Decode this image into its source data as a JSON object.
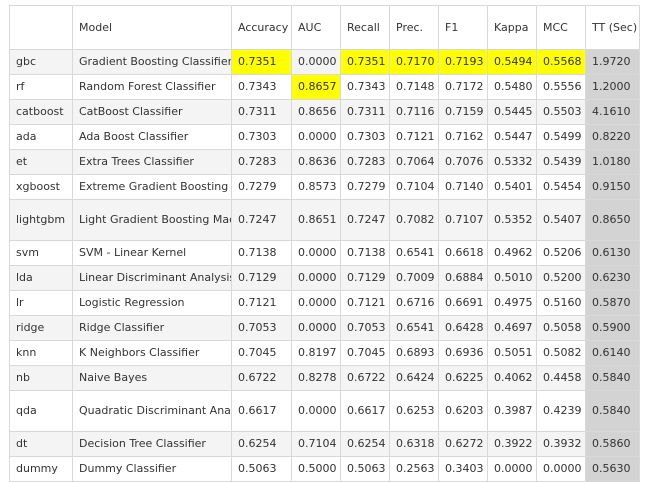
{
  "columns": [
    "",
    "Model",
    "Accuracy",
    "AUC",
    "Recall",
    "Prec.",
    "F1",
    "Kappa",
    "MCC",
    "TT (Sec)"
  ],
  "highlight_color": "#ffff00",
  "tt_column_color": "#d3d3d3",
  "rows": [
    {
      "id": "gbc",
      "model": "Gradient Boosting Classifier",
      "accuracy": "0.7351",
      "auc": "0.0000",
      "recall": "0.7351",
      "prec": "0.7170",
      "f1": "0.7193",
      "kappa": "0.5494",
      "mcc": "0.5568",
      "tt": "1.9720",
      "highlight": [
        "accuracy",
        "recall",
        "prec",
        "f1",
        "kappa",
        "mcc"
      ]
    },
    {
      "id": "rf",
      "model": "Random Forest Classifier",
      "accuracy": "0.7343",
      "auc": "0.8657",
      "recall": "0.7343",
      "prec": "0.7148",
      "f1": "0.7172",
      "kappa": "0.5480",
      "mcc": "0.5556",
      "tt": "1.2000",
      "highlight": [
        "auc"
      ]
    },
    {
      "id": "catboost",
      "model": "CatBoost Classifier",
      "accuracy": "0.7311",
      "auc": "0.8656",
      "recall": "0.7311",
      "prec": "0.7116",
      "f1": "0.7159",
      "kappa": "0.5445",
      "mcc": "0.5503",
      "tt": "4.1610",
      "highlight": []
    },
    {
      "id": "ada",
      "model": "Ada Boost Classifier",
      "accuracy": "0.7303",
      "auc": "0.0000",
      "recall": "0.7303",
      "prec": "0.7121",
      "f1": "0.7162",
      "kappa": "0.5447",
      "mcc": "0.5499",
      "tt": "0.8220",
      "highlight": []
    },
    {
      "id": "et",
      "model": "Extra Trees Classifier",
      "accuracy": "0.7283",
      "auc": "0.8636",
      "recall": "0.7283",
      "prec": "0.7064",
      "f1": "0.7076",
      "kappa": "0.5332",
      "mcc": "0.5439",
      "tt": "1.0180",
      "highlight": []
    },
    {
      "id": "xgboost",
      "model": "Extreme Gradient Boosting",
      "accuracy": "0.7279",
      "auc": "0.8573",
      "recall": "0.7279",
      "prec": "0.7104",
      "f1": "0.7140",
      "kappa": "0.5401",
      "mcc": "0.5454",
      "tt": "0.9150",
      "highlight": []
    },
    {
      "id": "lightgbm",
      "model": "Light Gradient Boosting Machine",
      "accuracy": "0.7247",
      "auc": "0.8651",
      "recall": "0.7247",
      "prec": "0.7082",
      "f1": "0.7107",
      "kappa": "0.5352",
      "mcc": "0.5407",
      "tt": "0.8650",
      "highlight": []
    },
    {
      "id": "svm",
      "model": "SVM - Linear Kernel",
      "accuracy": "0.7138",
      "auc": "0.0000",
      "recall": "0.7138",
      "prec": "0.6541",
      "f1": "0.6618",
      "kappa": "0.4962",
      "mcc": "0.5206",
      "tt": "0.6130",
      "highlight": []
    },
    {
      "id": "lda",
      "model": "Linear Discriminant Analysis",
      "accuracy": "0.7129",
      "auc": "0.0000",
      "recall": "0.7129",
      "prec": "0.7009",
      "f1": "0.6884",
      "kappa": "0.5010",
      "mcc": "0.5200",
      "tt": "0.6230",
      "highlight": []
    },
    {
      "id": "lr",
      "model": "Logistic Regression",
      "accuracy": "0.7121",
      "auc": "0.0000",
      "recall": "0.7121",
      "prec": "0.6716",
      "f1": "0.6691",
      "kappa": "0.4975",
      "mcc": "0.5160",
      "tt": "0.5870",
      "highlight": []
    },
    {
      "id": "ridge",
      "model": "Ridge Classifier",
      "accuracy": "0.7053",
      "auc": "0.0000",
      "recall": "0.7053",
      "prec": "0.6541",
      "f1": "0.6428",
      "kappa": "0.4697",
      "mcc": "0.5058",
      "tt": "0.5900",
      "highlight": []
    },
    {
      "id": "knn",
      "model": "K Neighbors Classifier",
      "accuracy": "0.7045",
      "auc": "0.8197",
      "recall": "0.7045",
      "prec": "0.6893",
      "f1": "0.6936",
      "kappa": "0.5051",
      "mcc": "0.5082",
      "tt": "0.6140",
      "highlight": []
    },
    {
      "id": "nb",
      "model": "Naive Bayes",
      "accuracy": "0.6722",
      "auc": "0.8278",
      "recall": "0.6722",
      "prec": "0.6424",
      "f1": "0.6225",
      "kappa": "0.4062",
      "mcc": "0.4458",
      "tt": "0.5840",
      "highlight": []
    },
    {
      "id": "qda",
      "model": "Quadratic Discriminant Analysis",
      "accuracy": "0.6617",
      "auc": "0.0000",
      "recall": "0.6617",
      "prec": "0.6253",
      "f1": "0.6203",
      "kappa": "0.3987",
      "mcc": "0.4239",
      "tt": "0.5840",
      "highlight": []
    },
    {
      "id": "dt",
      "model": "Decision Tree Classifier",
      "accuracy": "0.6254",
      "auc": "0.7104",
      "recall": "0.6254",
      "prec": "0.6318",
      "f1": "0.6272",
      "kappa": "0.3922",
      "mcc": "0.3932",
      "tt": "0.5860",
      "highlight": []
    },
    {
      "id": "dummy",
      "model": "Dummy Classifier",
      "accuracy": "0.5063",
      "auc": "0.5000",
      "recall": "0.5063",
      "prec": "0.2563",
      "f1": "0.3403",
      "kappa": "0.0000",
      "mcc": "0.0000",
      "tt": "0.5630",
      "highlight": []
    }
  ]
}
